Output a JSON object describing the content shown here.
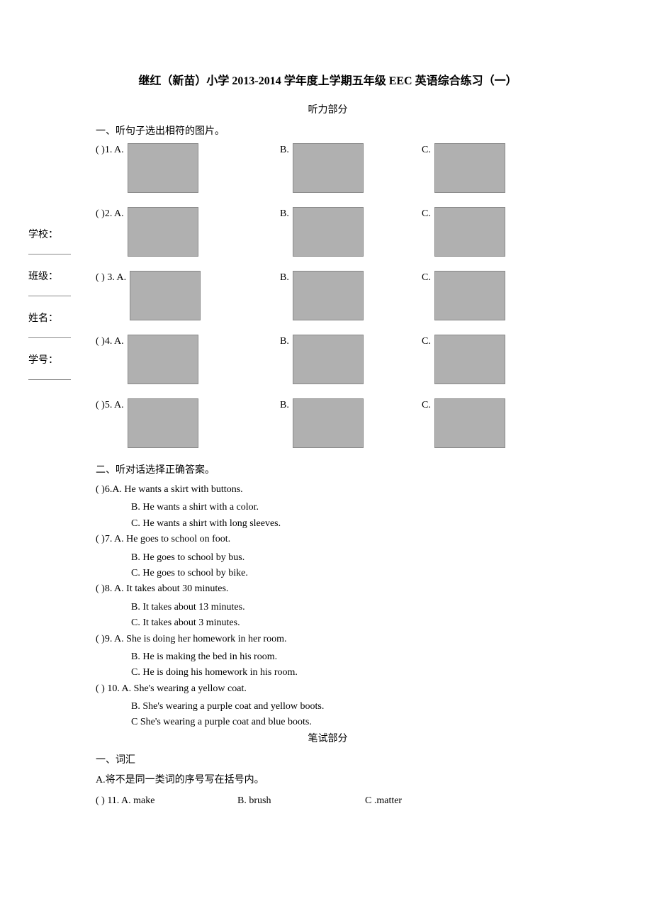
{
  "title": "继红（新苗）小学 2013-2014 学年度上学期五年级 EEC 英语综合练习（一）",
  "listening_title": "听力部分",
  "section1_heading": "一、听句子选出相符的图片。",
  "sidebar": {
    "school": "学校：",
    "class": "班级：",
    "name": "姓名：",
    "id": "学号："
  },
  "picture_questions": [
    {
      "num": "(      )1. A.",
      "b": "B.",
      "c": "C."
    },
    {
      "num": "(      )2. A.",
      "b": "B.",
      "c": "C."
    },
    {
      "num": "(      ) 3. A.",
      "b": "B.",
      "c": "C."
    },
    {
      "num": "(      )4. A.",
      "b": "B.",
      "c": "C."
    },
    {
      "num": "(      )5. A.",
      "b": "B.",
      "c": "C."
    }
  ],
  "section2_heading": "二、听对话选择正确答案。",
  "text_questions": [
    {
      "q": "(      )6.A. He wants a skirt with buttons.",
      "opts": [
        "B. He wants a shirt with a color.",
        "C. He wants a shirt with long sleeves."
      ]
    },
    {
      "q": "(      )7. A. He goes to school on foot.",
      "opts": [
        "B. He goes to school by bus.",
        "C. He goes to school by bike."
      ]
    },
    {
      "q": "(      )8. A. It takes about 30 minutes.",
      "opts": [
        "B. It takes about 13 minutes.",
        "C. It takes about 3 minutes."
      ]
    },
    {
      "q": "(      )9. A. She is doing her homework in her room.",
      "opts": [
        "B. He is making the bed in his room.",
        "C. He is doing his homework in his room."
      ]
    },
    {
      "q": "(      ) 10. A. She's wearing a yellow coat.",
      "opts": [
        "B. She's wearing a purple coat and yellow boots.",
        "C She's wearing a purple coat and blue boots."
      ]
    }
  ],
  "written_title": "笔试部分",
  "vocab_heading": "一、词汇",
  "vocab_subheading": "A.将不是同一类词的序号写在括号内。",
  "vocab_q": {
    "a": "(       ) 11. A. make",
    "b": "B. brush",
    "c": "C .matter"
  }
}
